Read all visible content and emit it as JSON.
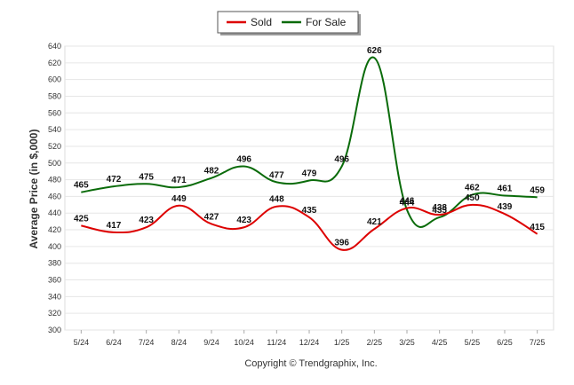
{
  "chart_data": {
    "type": "line",
    "categories": [
      "5/24",
      "6/24",
      "7/24",
      "8/24",
      "9/24",
      "10/24",
      "11/24",
      "12/24",
      "1/25",
      "2/25",
      "3/25",
      "4/25",
      "5/25",
      "6/25",
      "7/25"
    ],
    "series": [
      {
        "name": "Sold",
        "color": "#dd0000",
        "values": [
          425,
          417,
          423,
          449,
          427,
          423,
          448,
          435,
          396,
          421,
          446,
          438,
          450,
          439,
          415
        ]
      },
      {
        "name": "For Sale",
        "color": "#0a6b0a",
        "values": [
          465,
          472,
          475,
          471,
          482,
          496,
          477,
          479,
          496,
          626,
          444,
          435,
          462,
          461,
          459
        ]
      }
    ],
    "yticks": [
      300,
      320,
      340,
      360,
      380,
      400,
      420,
      440,
      460,
      480,
      500,
      520,
      540,
      560,
      580,
      600,
      620,
      640
    ],
    "ylim": [
      300,
      640
    ],
    "ylabel": "Average Price (in $,000)",
    "xlabel": "",
    "title": "",
    "grid": true,
    "legend_position": "top-center",
    "copyright": "Copyright © Trendgraphix, Inc."
  }
}
